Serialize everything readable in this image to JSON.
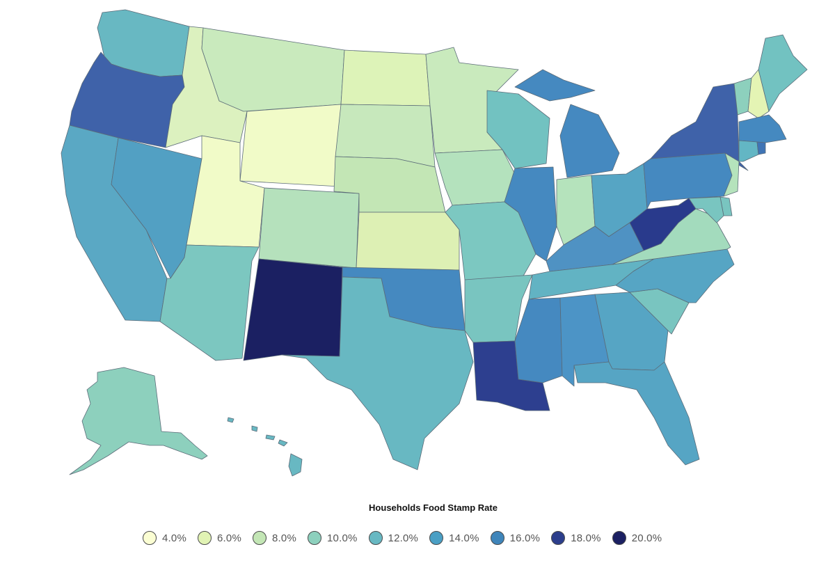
{
  "legend": {
    "title": "Households Food Stamp Rate",
    "items": [
      {
        "label": "4.0%",
        "color": "#fbfed3"
      },
      {
        "label": "6.0%",
        "color": "#e1f3b4"
      },
      {
        "label": "8.0%",
        "color": "#c3e6b5"
      },
      {
        "label": "10.0%",
        "color": "#8dd0bd"
      },
      {
        "label": "12.0%",
        "color": "#68b8c2"
      },
      {
        "label": "14.0%",
        "color": "#4a9fc4"
      },
      {
        "label": "16.0%",
        "color": "#3f85ba"
      },
      {
        "label": "18.0%",
        "color": "#2c3e8c"
      },
      {
        "label": "20.0%",
        "color": "#1b2062"
      }
    ]
  },
  "state_colors": {
    "WA": "#68b8c2",
    "OR": "#3f62a9",
    "CA": "#5aa8c4",
    "NV": "#52a0c3",
    "ID": "#dcf1bf",
    "MT": "#c9eabd",
    "WY": "#f1fbc8",
    "UT": "#f1fbc8",
    "AZ": "#7cc7c0",
    "CO": "#b5e1bc",
    "NM": "#1b2062",
    "ND": "#ddf3b8",
    "SD": "#c7e8bc",
    "NE": "#c3e6b5",
    "KS": "#ddf0b4",
    "OK": "#4589c0",
    "TX": "#68b8c2",
    "MN": "#c9eabd",
    "IA": "#b4e2bd",
    "MO": "#7cc8c1",
    "AR": "#79c5c0",
    "LA": "#2d3f8f",
    "WI": "#72c2c1",
    "IL": "#4589c0",
    "MI": "#4589c0",
    "IN": "#b5e3bc",
    "OH": "#56a5c4",
    "KY": "#4f92c3",
    "TN": "#62b3c3",
    "MS": "#4589c0",
    "AL": "#4c94c6",
    "GA": "#56a5c4",
    "FL": "#56a5c4",
    "SC": "#79c5c0",
    "NC": "#56a5c4",
    "VA": "#a3dbbd",
    "WV": "#293a8c",
    "PA": "#4589c0",
    "NY": "#3f62a9",
    "VT": "#8dd0bd",
    "NH": "#e4f4b4",
    "ME": "#72c2c1",
    "MA": "#4589c0",
    "CT": "#63b6c4",
    "RI": "#3f74b5",
    "NJ": "#b5e3bc",
    "DE": "#79c5c0",
    "MD": "#79c5c0",
    "AK": "#8dd0bd",
    "HI": "#68b8c2"
  }
}
